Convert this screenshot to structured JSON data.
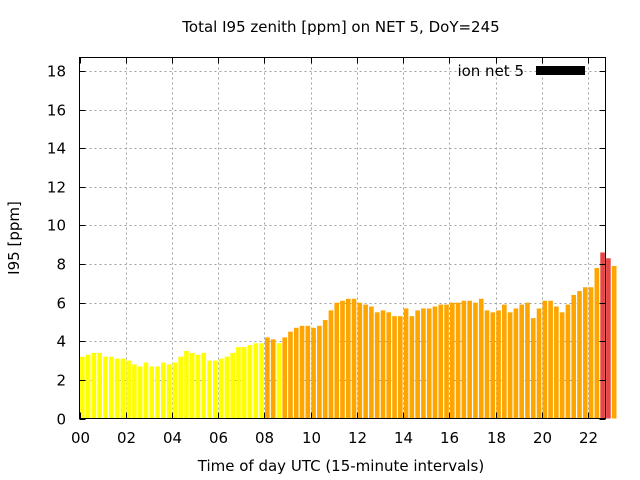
{
  "chart_data": {
    "type": "bar",
    "title": "Total I95 zenith [ppm] on NET 5, DoY=245",
    "xlabel": "Time of day UTC (15-minute intervals)",
    "ylabel": "I95 [ppm]",
    "x_ticks": [
      "00",
      "02",
      "04",
      "06",
      "08",
      "10",
      "12",
      "14",
      "16",
      "18",
      "20",
      "22"
    ],
    "y_ticks": [
      "0",
      "2",
      "4",
      "6",
      "8",
      "10",
      "12",
      "14",
      "16",
      "18"
    ],
    "ylim": [
      0,
      18.7
    ],
    "xlim_hours": [
      0,
      22.75
    ],
    "grid": true,
    "legend": {
      "position": "top-right",
      "entries": [
        {
          "label": "ion net 5",
          "color": "#000000"
        }
      ]
    },
    "color_scale": {
      "below_4": "#ffff00",
      "4_to_8": "#ffa500",
      "above_8": "#e84545"
    },
    "interval_hours": 0.25,
    "values": [
      3.2,
      3.3,
      3.4,
      3.4,
      3.2,
      3.2,
      3.1,
      3.1,
      3.0,
      2.8,
      2.7,
      2.9,
      2.7,
      2.7,
      2.9,
      2.8,
      2.9,
      3.2,
      3.5,
      3.4,
      3.3,
      3.4,
      3.0,
      3.0,
      3.1,
      3.2,
      3.4,
      3.7,
      3.7,
      3.8,
      3.9,
      3.9,
      4.2,
      4.1,
      3.9,
      4.2,
      4.5,
      4.7,
      4.8,
      4.8,
      4.7,
      4.8,
      5.1,
      5.6,
      6.0,
      6.1,
      6.2,
      6.2,
      6.0,
      5.9,
      5.8,
      5.5,
      5.6,
      5.5,
      5.3,
      5.3,
      5.7,
      5.3,
      5.6,
      5.7,
      5.7,
      5.8,
      5.9,
      5.9,
      6.0,
      6.0,
      6.1,
      6.1,
      6.0,
      6.2,
      5.6,
      5.5,
      5.6,
      5.9,
      5.5,
      5.7,
      5.9,
      6.0,
      5.2,
      5.7,
      6.1,
      6.1,
      5.8,
      5.5,
      5.9,
      6.4,
      6.6,
      6.8,
      6.8,
      7.8,
      8.6,
      8.3,
      7.9
    ]
  }
}
